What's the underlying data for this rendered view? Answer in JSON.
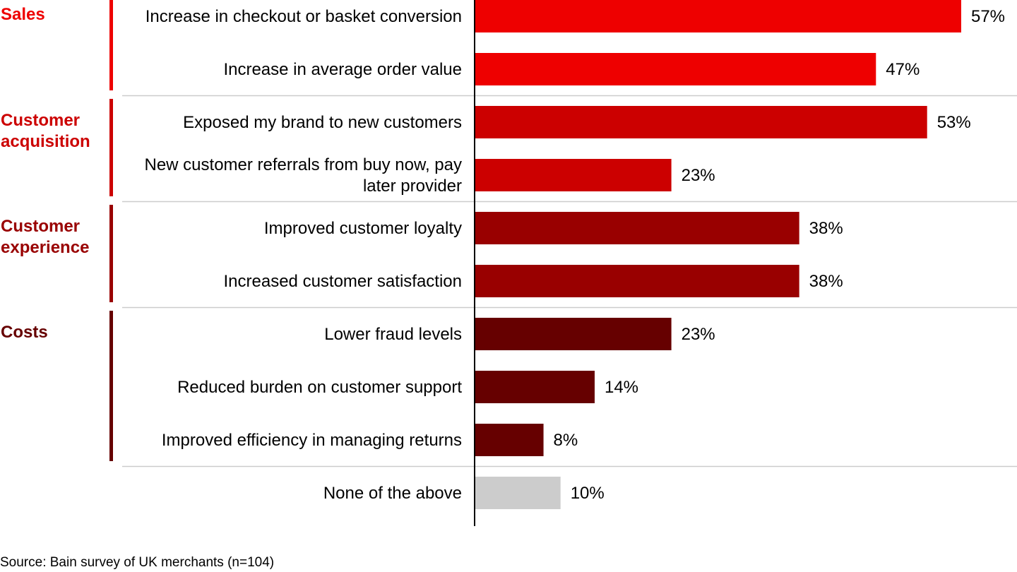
{
  "chart_data": {
    "type": "bar",
    "orientation": "horizontal",
    "unit": "%",
    "xlim": [
      0,
      60
    ],
    "groups": [
      {
        "name": "Sales",
        "color": "#ee0000",
        "rows": [
          0,
          1
        ]
      },
      {
        "name": "Customer acquisition",
        "color": "#cc0000",
        "rows": [
          2,
          3
        ]
      },
      {
        "name": "Customer experience",
        "color": "#990000",
        "rows": [
          4,
          5
        ]
      },
      {
        "name": "Costs",
        "color": "#660000",
        "rows": [
          6,
          7,
          8
        ]
      }
    ],
    "categories": [
      "Increase in checkout or basket conversion",
      "Increase in average order value",
      "Exposed my brand to new customers",
      "New customer referrals from buy now, pay later provider",
      "Improved customer loyalty",
      "Increased customer satisfaction",
      "Lower fraud levels",
      "Reduced burden on customer support",
      "Improved efficiency in managing returns",
      "None of the above"
    ],
    "values": [
      57,
      47,
      53,
      23,
      38,
      38,
      23,
      14,
      8,
      10
    ],
    "value_labels": [
      "57%",
      "47%",
      "53%",
      "23%",
      "38%",
      "38%",
      "23%",
      "14%",
      "8%",
      "10%"
    ],
    "bar_colors": [
      "#ee0000",
      "#ee0000",
      "#cc0000",
      "#cc0000",
      "#990000",
      "#990000",
      "#660000",
      "#660000",
      "#660000",
      "#cccccc"
    ],
    "grid": false
  },
  "source": "Source: Bain survey of UK merchants (n=104)"
}
